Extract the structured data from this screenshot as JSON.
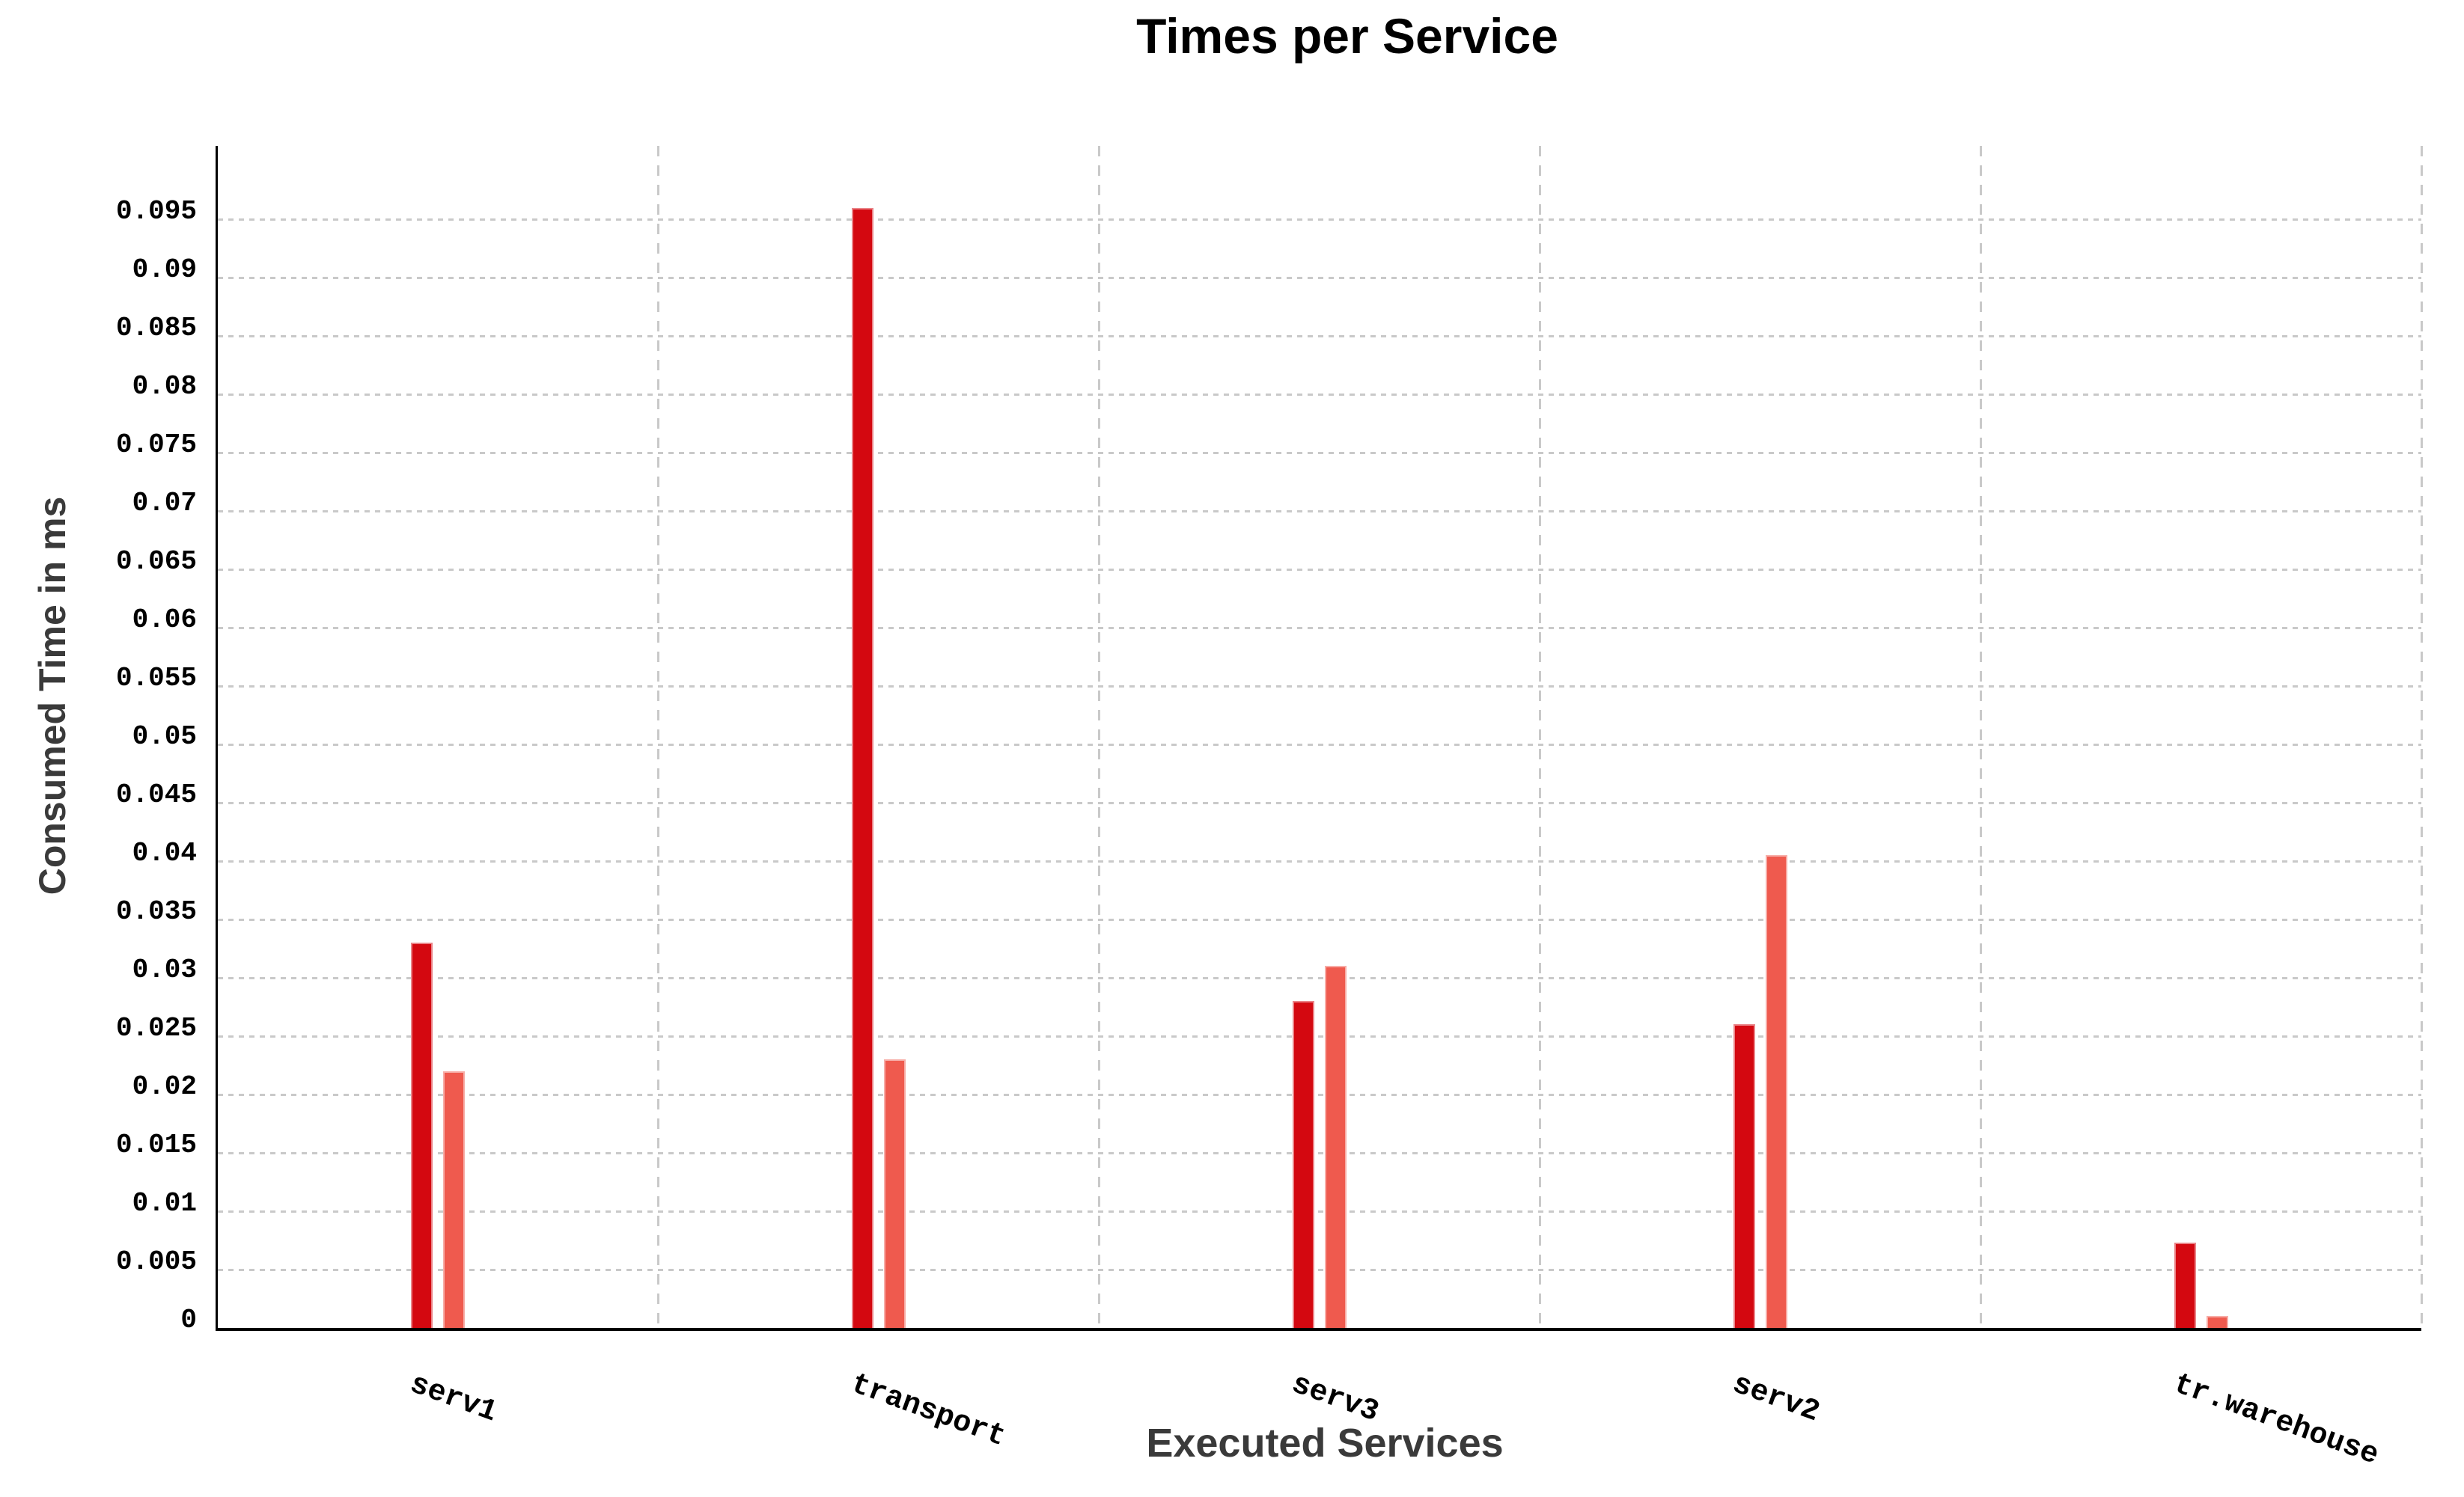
{
  "chart_data": {
    "type": "bar",
    "title": "Times per Service",
    "xlabel": "Executed Services",
    "ylabel": "Consumed Time in ms",
    "categories": [
      "serv1",
      "transport",
      "serv3",
      "serv2",
      "tr.warehouse"
    ],
    "series": [
      {
        "name": "dark-red-series",
        "color": "#d40810",
        "values": [
          0.033,
          0.096,
          0.028,
          0.026,
          0.0073
        ]
      },
      {
        "name": "light-red-series",
        "color": "#ef5a4e",
        "values": [
          0.022,
          0.023,
          0.031,
          0.0405,
          0.001
        ]
      }
    ],
    "ylim": [
      0,
      0.1013
    ],
    "ytick_step": 0.005,
    "ytick_labels": [
      "0",
      "0.005",
      "0.01",
      "0.015",
      "0.02",
      "0.025",
      "0.03",
      "0.035",
      "0.04",
      "0.045",
      "0.05",
      "0.055",
      "0.06",
      "0.065",
      "0.07",
      "0.075",
      "0.08",
      "0.085",
      "0.09",
      "0.095"
    ],
    "grid": true,
    "grid_color": "#c9c9c9",
    "axis_color": "#000000",
    "axis_title_color": "#3a3a3a",
    "title_color": "#000000",
    "legend": false,
    "x_label_rotation_deg": 20
  }
}
